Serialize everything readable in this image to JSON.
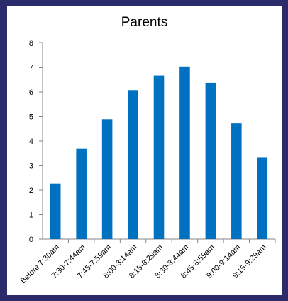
{
  "chart_data": {
    "type": "bar",
    "title": "Parents",
    "categories": [
      "Before 7:30am",
      "7:30-7:44am",
      "7:45-7:59am",
      "8:00-8:14am",
      "8:15-8:29am",
      "8:30-8:44am",
      "8:45-8:59am",
      "9:00-9:14am",
      "9:15-9:29am"
    ],
    "values": [
      2.27,
      3.69,
      4.89,
      6.05,
      6.65,
      7.02,
      6.38,
      4.72,
      3.32
    ],
    "xlabel": "",
    "ylabel": "",
    "ylim": [
      0,
      8
    ],
    "yticks": [
      0,
      1,
      2,
      3,
      4,
      5,
      6,
      7,
      8
    ],
    "grid": false,
    "legend": "none",
    "bar_color": "#0070c0",
    "background_color": "#2b2b6b"
  }
}
